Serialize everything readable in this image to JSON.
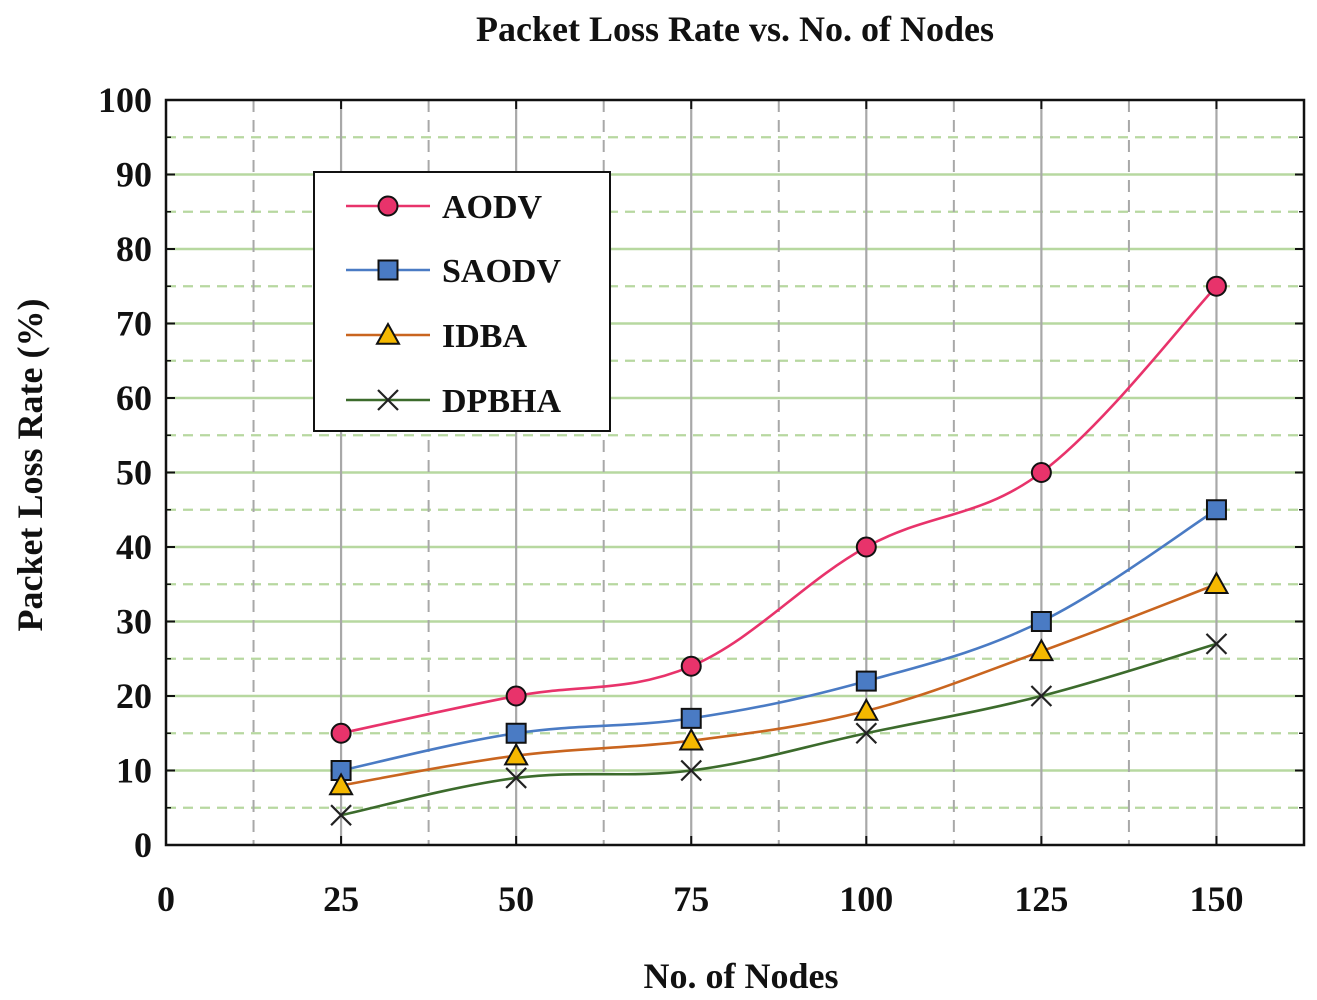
{
  "chart_data": {
    "type": "line",
    "title": "Packet Loss Rate vs. No. of Nodes",
    "xlabel": "No. of Nodes",
    "ylabel": "Packet Loss Rate (%)",
    "xlim": [
      0,
      162.5
    ],
    "ylim": [
      0,
      100
    ],
    "x_ticks": [
      0,
      25,
      50,
      75,
      100,
      125,
      150
    ],
    "x_tick_labels": [
      "0",
      "25",
      "50",
      "75",
      "100",
      "125",
      "150"
    ],
    "y_ticks": [
      0,
      10,
      20,
      30,
      40,
      50,
      60,
      70,
      80,
      90,
      100
    ],
    "y_tick_labels": [
      "0",
      "10",
      "20",
      "30",
      "40",
      "50",
      "60",
      "70",
      "80",
      "90",
      "100"
    ],
    "x_minor_gridlines": [
      12.5,
      37.5,
      62.5,
      87.5,
      112.5,
      137.5
    ],
    "y_minor_gridlines": [
      5,
      15,
      25,
      35,
      45,
      55,
      65,
      75,
      85,
      95
    ],
    "grid": true,
    "legend_position": "top-left",
    "x": [
      25,
      50,
      75,
      100,
      125,
      150
    ],
    "series": [
      {
        "name": "AODV",
        "values": [
          15,
          20,
          24,
          40,
          50,
          75
        ],
        "color": "#e8336b",
        "marker": "circle",
        "marker_fill": "#e8336b"
      },
      {
        "name": "SAODV",
        "values": [
          10,
          15,
          17,
          22,
          30,
          45
        ],
        "color": "#4a7bc4",
        "marker": "square",
        "marker_fill": "#4a7bc4"
      },
      {
        "name": "IDBA",
        "values": [
          8,
          12,
          14,
          18,
          26,
          35
        ],
        "color": "#c9651f",
        "marker": "triangle",
        "marker_fill": "#f5b800"
      },
      {
        "name": "DPBHA",
        "values": [
          4,
          9,
          10,
          15,
          20,
          27
        ],
        "color": "#3c6b2c",
        "marker": "x",
        "marker_fill": "#222222"
      }
    ],
    "colors": {
      "major_grid_vertical": "#a8a8a8",
      "minor_grid_vertical": "#a8a8a8",
      "major_grid_horizontal": "#b7d8a0",
      "minor_grid_horizontal": "#b7d8a0",
      "axis": "#111111",
      "text": "#111111"
    }
  }
}
